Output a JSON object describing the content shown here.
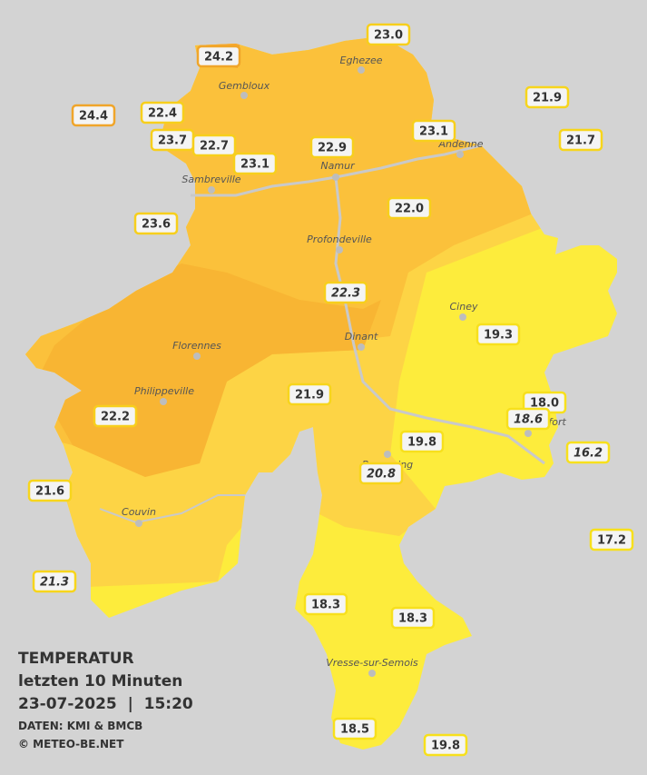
{
  "title": {
    "lines": [
      "TEMPERATUR",
      "letzten 10 Minuten",
      "23-07-2025  |  15:20"
    ]
  },
  "credits": [
    "DATEN: KMI & BMCB",
    "© METEO-BE.NET"
  ],
  "cities": [
    "Eghezee",
    "Gembloux",
    "Andenne",
    "Namur",
    "Sambreville",
    "Profondeville",
    "Ciney",
    "Dinant",
    "Florennes",
    "Philippeville",
    "Rochefort",
    "Beauraing",
    "Couvin",
    "Vresse-sur-Semois"
  ],
  "stations": [
    {
      "label": "24.2",
      "italic": false,
      "color": "#f0a52a"
    },
    {
      "label": "23.0",
      "italic": false,
      "color": "#f7cf1c"
    },
    {
      "label": "24.4",
      "italic": false,
      "color": "#f0a52a"
    },
    {
      "label": "22.4",
      "italic": false,
      "color": "#f7cf1c"
    },
    {
      "label": "21.9",
      "italic": false,
      "color": "#f7d51c"
    },
    {
      "label": "23.7",
      "italic": false,
      "color": "#f7cf1c"
    },
    {
      "label": "22.7",
      "italic": false,
      "color": "#f7cf1c"
    },
    {
      "label": "22.9",
      "italic": false,
      "color": "#f7cf1c"
    },
    {
      "label": "23.1",
      "italic": false,
      "color": "#f7cf1c"
    },
    {
      "label": "21.7",
      "italic": false,
      "color": "#f7d51c"
    },
    {
      "label": "23.1",
      "italic": false,
      "color": "#f7cf1c"
    },
    {
      "label": "22.0",
      "italic": false,
      "color": "#f7cf1c"
    },
    {
      "label": "23.6",
      "italic": false,
      "color": "#f7cf1c"
    },
    {
      "label": "22.3",
      "italic": true,
      "color": "#f7cf1c"
    },
    {
      "label": "19.3",
      "italic": false,
      "color": "#f7e01c"
    },
    {
      "label": "21.9",
      "italic": false,
      "color": "#f7d51c"
    },
    {
      "label": "22.2",
      "italic": false,
      "color": "#f7cf1c"
    },
    {
      "label": "18.0",
      "italic": false,
      "color": "#f7e01c"
    },
    {
      "label": "18.6",
      "italic": true,
      "color": "#f7e01c"
    },
    {
      "label": "16.2",
      "italic": true,
      "color": "#f7e01c"
    },
    {
      "label": "19.8",
      "italic": false,
      "color": "#f7e01c"
    },
    {
      "label": "20.8",
      "italic": true,
      "color": "#f7d51c"
    },
    {
      "label": "21.6",
      "italic": false,
      "color": "#f7d51c"
    },
    {
      "label": "17.2",
      "italic": false,
      "color": "#f7e01c"
    },
    {
      "label": "21.3",
      "italic": true,
      "color": "#f7d51c"
    },
    {
      "label": "18.3",
      "italic": false,
      "color": "#f7e01c"
    },
    {
      "label": "18.3",
      "italic": false,
      "color": "#f7e01c"
    },
    {
      "label": "18.5",
      "italic": false,
      "color": "#f7e01c"
    },
    {
      "label": "19.8",
      "italic": false,
      "color": "#f7e01c"
    }
  ]
}
